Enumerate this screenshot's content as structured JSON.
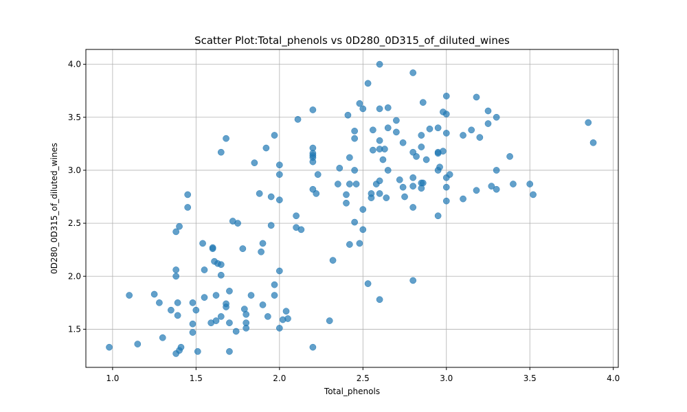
{
  "chart_data": {
    "type": "scatter",
    "title": "Scatter Plot:Total_phenols vs 0D280_0D315_of_diluted_wines",
    "xlabel": "Total_phenols",
    "ylabel": "0D280_0D315_of_diluted_wines",
    "xlim": [
      0.84,
      4.03
    ],
    "ylim": [
      1.14,
      4.14
    ],
    "xticks": [
      1.0,
      1.5,
      2.0,
      2.5,
      3.0,
      3.5,
      4.0
    ],
    "xtick_labels": [
      "1.0",
      "1.5",
      "2.0",
      "2.5",
      "3.0",
      "3.5",
      "4.0"
    ],
    "yticks": [
      1.5,
      2.0,
      2.5,
      3.0,
      3.5,
      4.0
    ],
    "ytick_labels": [
      "1.5",
      "2.0",
      "2.5",
      "3.0",
      "3.5",
      "4.0"
    ],
    "grid": true,
    "marker_color": "#1f77b4",
    "marker_alpha": 0.7,
    "points": [
      [
        0.98,
        1.33
      ],
      [
        1.1,
        1.82
      ],
      [
        1.15,
        1.36
      ],
      [
        1.25,
        1.83
      ],
      [
        1.28,
        1.75
      ],
      [
        1.3,
        1.42
      ],
      [
        1.35,
        1.68
      ],
      [
        1.38,
        1.27
      ],
      [
        1.38,
        2.0
      ],
      [
        1.38,
        2.06
      ],
      [
        1.38,
        2.42
      ],
      [
        1.39,
        1.63
      ],
      [
        1.39,
        1.75
      ],
      [
        1.4,
        2.47
      ],
      [
        1.4,
        1.3
      ],
      [
        1.41,
        1.33
      ],
      [
        1.45,
        2.77
      ],
      [
        1.45,
        2.65
      ],
      [
        1.48,
        1.75
      ],
      [
        1.48,
        1.55
      ],
      [
        1.48,
        1.47
      ],
      [
        1.5,
        1.68
      ],
      [
        1.51,
        1.29
      ],
      [
        1.54,
        2.31
      ],
      [
        1.55,
        1.8
      ],
      [
        1.55,
        2.06
      ],
      [
        1.59,
        1.56
      ],
      [
        1.6,
        2.27
      ],
      [
        1.6,
        2.26
      ],
      [
        1.61,
        2.14
      ],
      [
        1.62,
        1.58
      ],
      [
        1.62,
        1.82
      ],
      [
        1.63,
        2.12
      ],
      [
        1.65,
        3.17
      ],
      [
        1.65,
        2.11
      ],
      [
        1.65,
        2.01
      ],
      [
        1.65,
        1.62
      ],
      [
        1.68,
        3.3
      ],
      [
        1.68,
        1.74
      ],
      [
        1.68,
        1.71
      ],
      [
        1.7,
        1.86
      ],
      [
        1.7,
        1.56
      ],
      [
        1.7,
        1.29
      ],
      [
        1.72,
        2.52
      ],
      [
        1.74,
        1.48
      ],
      [
        1.75,
        2.5
      ],
      [
        1.78,
        2.26
      ],
      [
        1.79,
        1.69
      ],
      [
        1.8,
        1.64
      ],
      [
        1.8,
        1.56
      ],
      [
        1.8,
        1.51
      ],
      [
        1.83,
        1.82
      ],
      [
        1.85,
        3.07
      ],
      [
        1.88,
        2.78
      ],
      [
        1.89,
        2.23
      ],
      [
        1.9,
        2.31
      ],
      [
        1.9,
        1.73
      ],
      [
        1.92,
        3.21
      ],
      [
        1.93,
        1.62
      ],
      [
        1.95,
        2.75
      ],
      [
        1.95,
        2.48
      ],
      [
        1.97,
        3.33
      ],
      [
        1.97,
        1.92
      ],
      [
        1.97,
        1.82
      ],
      [
        2.0,
        3.05
      ],
      [
        2.0,
        2.96
      ],
      [
        2.0,
        2.72
      ],
      [
        2.0,
        2.05
      ],
      [
        2.0,
        1.51
      ],
      [
        2.02,
        1.59
      ],
      [
        2.04,
        1.67
      ],
      [
        2.05,
        1.6
      ],
      [
        2.1,
        2.57
      ],
      [
        2.1,
        2.46
      ],
      [
        2.11,
        3.48
      ],
      [
        2.13,
        2.44
      ],
      [
        2.2,
        3.57
      ],
      [
        2.2,
        3.21
      ],
      [
        2.2,
        3.16
      ],
      [
        2.2,
        3.14
      ],
      [
        2.2,
        3.12
      ],
      [
        2.2,
        3.08
      ],
      [
        2.2,
        2.82
      ],
      [
        2.2,
        1.33
      ],
      [
        2.22,
        2.78
      ],
      [
        2.23,
        2.96
      ],
      [
        2.3,
        1.58
      ],
      [
        2.32,
        2.15
      ],
      [
        2.35,
        2.87
      ],
      [
        2.36,
        3.02
      ],
      [
        2.4,
        2.77
      ],
      [
        2.4,
        2.69
      ],
      [
        2.41,
        3.52
      ],
      [
        2.42,
        3.12
      ],
      [
        2.42,
        2.87
      ],
      [
        2.42,
        2.3
      ],
      [
        2.45,
        3.37
      ],
      [
        2.45,
        3.3
      ],
      [
        2.45,
        3.0
      ],
      [
        2.45,
        2.51
      ],
      [
        2.46,
        2.87
      ],
      [
        2.48,
        3.63
      ],
      [
        2.48,
        2.31
      ],
      [
        2.5,
        3.58
      ],
      [
        2.5,
        2.63
      ],
      [
        2.5,
        2.44
      ],
      [
        2.53,
        3.82
      ],
      [
        2.53,
        1.93
      ],
      [
        2.55,
        2.78
      ],
      [
        2.55,
        2.74
      ],
      [
        2.56,
        3.38
      ],
      [
        2.56,
        3.19
      ],
      [
        2.58,
        2.87
      ],
      [
        2.6,
        4.0
      ],
      [
        2.6,
        3.58
      ],
      [
        2.6,
        3.28
      ],
      [
        2.6,
        3.2
      ],
      [
        2.6,
        2.9
      ],
      [
        2.6,
        2.78
      ],
      [
        2.6,
        1.78
      ],
      [
        2.62,
        3.1
      ],
      [
        2.63,
        3.2
      ],
      [
        2.64,
        2.74
      ],
      [
        2.65,
        3.59
      ],
      [
        2.65,
        3.4
      ],
      [
        2.65,
        3.0
      ],
      [
        2.7,
        3.47
      ],
      [
        2.7,
        3.36
      ],
      [
        2.72,
        2.91
      ],
      [
        2.74,
        3.26
      ],
      [
        2.74,
        2.84
      ],
      [
        2.75,
        2.75
      ],
      [
        2.8,
        3.92
      ],
      [
        2.8,
        3.17
      ],
      [
        2.8,
        2.93
      ],
      [
        2.8,
        2.85
      ],
      [
        2.8,
        2.65
      ],
      [
        2.8,
        1.96
      ],
      [
        2.82,
        3.13
      ],
      [
        2.85,
        3.33
      ],
      [
        2.85,
        3.22
      ],
      [
        2.85,
        2.88
      ],
      [
        2.85,
        2.83
      ],
      [
        2.86,
        3.64
      ],
      [
        2.86,
        2.88
      ],
      [
        2.88,
        3.1
      ],
      [
        2.9,
        3.39
      ],
      [
        2.95,
        3.4
      ],
      [
        2.95,
        3.17
      ],
      [
        2.95,
        3.16
      ],
      [
        2.95,
        3.0
      ],
      [
        2.95,
        2.57
      ],
      [
        2.96,
        3.03
      ],
      [
        2.98,
        3.55
      ],
      [
        2.98,
        3.18
      ],
      [
        3.0,
        3.7
      ],
      [
        3.0,
        3.53
      ],
      [
        3.0,
        3.35
      ],
      [
        3.0,
        2.93
      ],
      [
        3.0,
        2.84
      ],
      [
        3.0,
        2.71
      ],
      [
        3.02,
        2.96
      ],
      [
        3.1,
        3.33
      ],
      [
        3.1,
        2.73
      ],
      [
        3.15,
        3.38
      ],
      [
        3.18,
        3.69
      ],
      [
        3.18,
        2.81
      ],
      [
        3.2,
        3.31
      ],
      [
        3.25,
        3.56
      ],
      [
        3.25,
        3.44
      ],
      [
        3.27,
        2.85
      ],
      [
        3.3,
        3.5
      ],
      [
        3.3,
        3.0
      ],
      [
        3.3,
        2.82
      ],
      [
        3.38,
        3.13
      ],
      [
        3.4,
        2.87
      ],
      [
        3.5,
        2.87
      ],
      [
        3.52,
        2.77
      ],
      [
        3.85,
        3.45
      ],
      [
        3.88,
        3.26
      ]
    ]
  }
}
